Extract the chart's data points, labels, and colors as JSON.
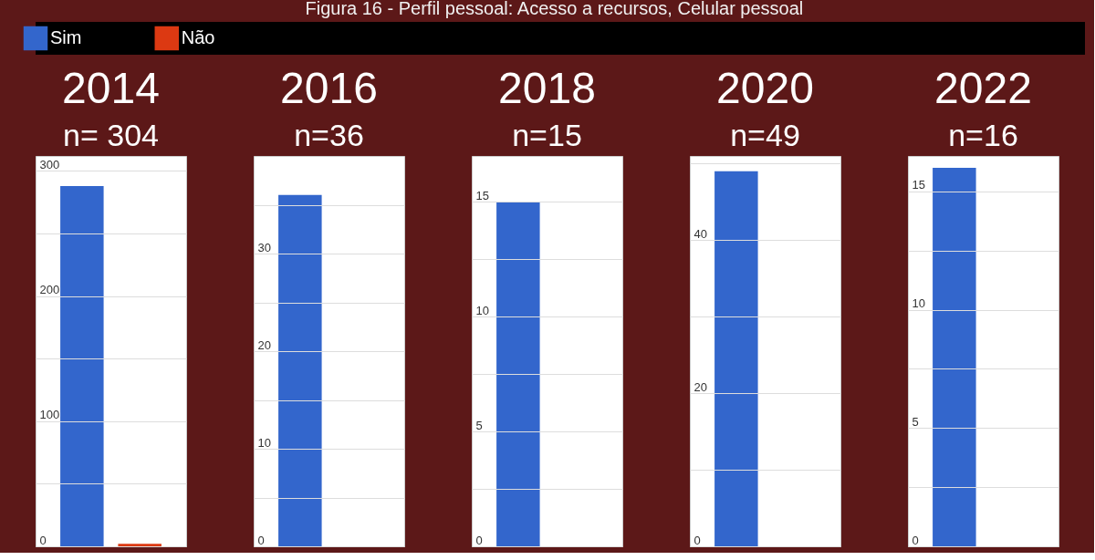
{
  "chart_data": [
    {
      "type": "bar",
      "title": "2014",
      "subtitle": "n= 304",
      "annotations": [
        "Figura 16 - Perfil pessoal: Acesso a recursos, Celular pessoal"
      ],
      "categories": [
        null
      ],
      "series": [
        {
          "name": "Sim",
          "color": "#3366cc",
          "values": [
            288
          ]
        },
        {
          "name": "Não",
          "color": "#dc3912",
          "values": [
            2
          ]
        }
      ],
      "ylim": [
        0,
        312
      ],
      "yticks": [
        0,
        {
          "value": 50,
          "label": null
        },
        100,
        {
          "value": 150,
          "label": null
        },
        200,
        {
          "value": 250,
          "label": null
        },
        300
      ],
      "grid": "y",
      "legend": "top"
    },
    {
      "type": "bar",
      "title": "2016",
      "subtitle": "n=36",
      "categories": [
        null
      ],
      "series": [
        {
          "color": "#3366cc",
          "values": [
            36
          ]
        },
        {
          "color": "#dc3912",
          "values": [
            0
          ]
        }
      ],
      "ylim": [
        0,
        40
      ],
      "yticks": [
        0,
        {
          "value": 5,
          "label": null
        },
        10,
        {
          "value": 15,
          "label": null
        },
        20,
        {
          "value": 25,
          "label": null
        },
        30,
        {
          "value": 35,
          "label": null
        }
      ],
      "grid": "y"
    },
    {
      "type": "bar",
      "title": "2018",
      "subtitle": "n=15",
      "categories": [
        null
      ],
      "series": [
        {
          "color": "#3366cc",
          "values": [
            15
          ]
        },
        {
          "color": "#dc3912",
          "values": [
            0
          ]
        }
      ],
      "ylim": [
        0,
        17
      ],
      "yticks": [
        0,
        {
          "value": 2.5,
          "label": null
        },
        5,
        {
          "value": 7.5,
          "label": null
        },
        10,
        {
          "value": 12.5,
          "label": null
        },
        15
      ],
      "grid": "y"
    },
    {
      "type": "bar",
      "title": "2020",
      "subtitle": "n=49",
      "categories": [
        null
      ],
      "series": [
        {
          "color": "#3366cc",
          "values": [
            49
          ]
        },
        {
          "color": "#dc3912",
          "values": [
            0
          ]
        }
      ],
      "ylim": [
        0,
        51
      ],
      "yticks": [
        0,
        {
          "value": 10,
          "label": null
        },
        20,
        {
          "value": 30,
          "label": null
        },
        40,
        {
          "value": 50,
          "label": null
        }
      ],
      "grid": "y"
    },
    {
      "type": "bar",
      "title": "2022",
      "subtitle": "n=16",
      "categories": [
        null
      ],
      "series": [
        {
          "color": "#3366cc",
          "values": [
            16
          ]
        },
        {
          "color": "#dc3912",
          "values": [
            0
          ]
        }
      ],
      "ylim": [
        0,
        16.5
      ],
      "yticks": [
        0,
        {
          "value": 2.5,
          "label": null
        },
        5,
        {
          "value": 7.5,
          "label": null
        },
        10,
        {
          "value": 12.5,
          "label": null
        },
        15
      ],
      "grid": "y"
    }
  ]
}
